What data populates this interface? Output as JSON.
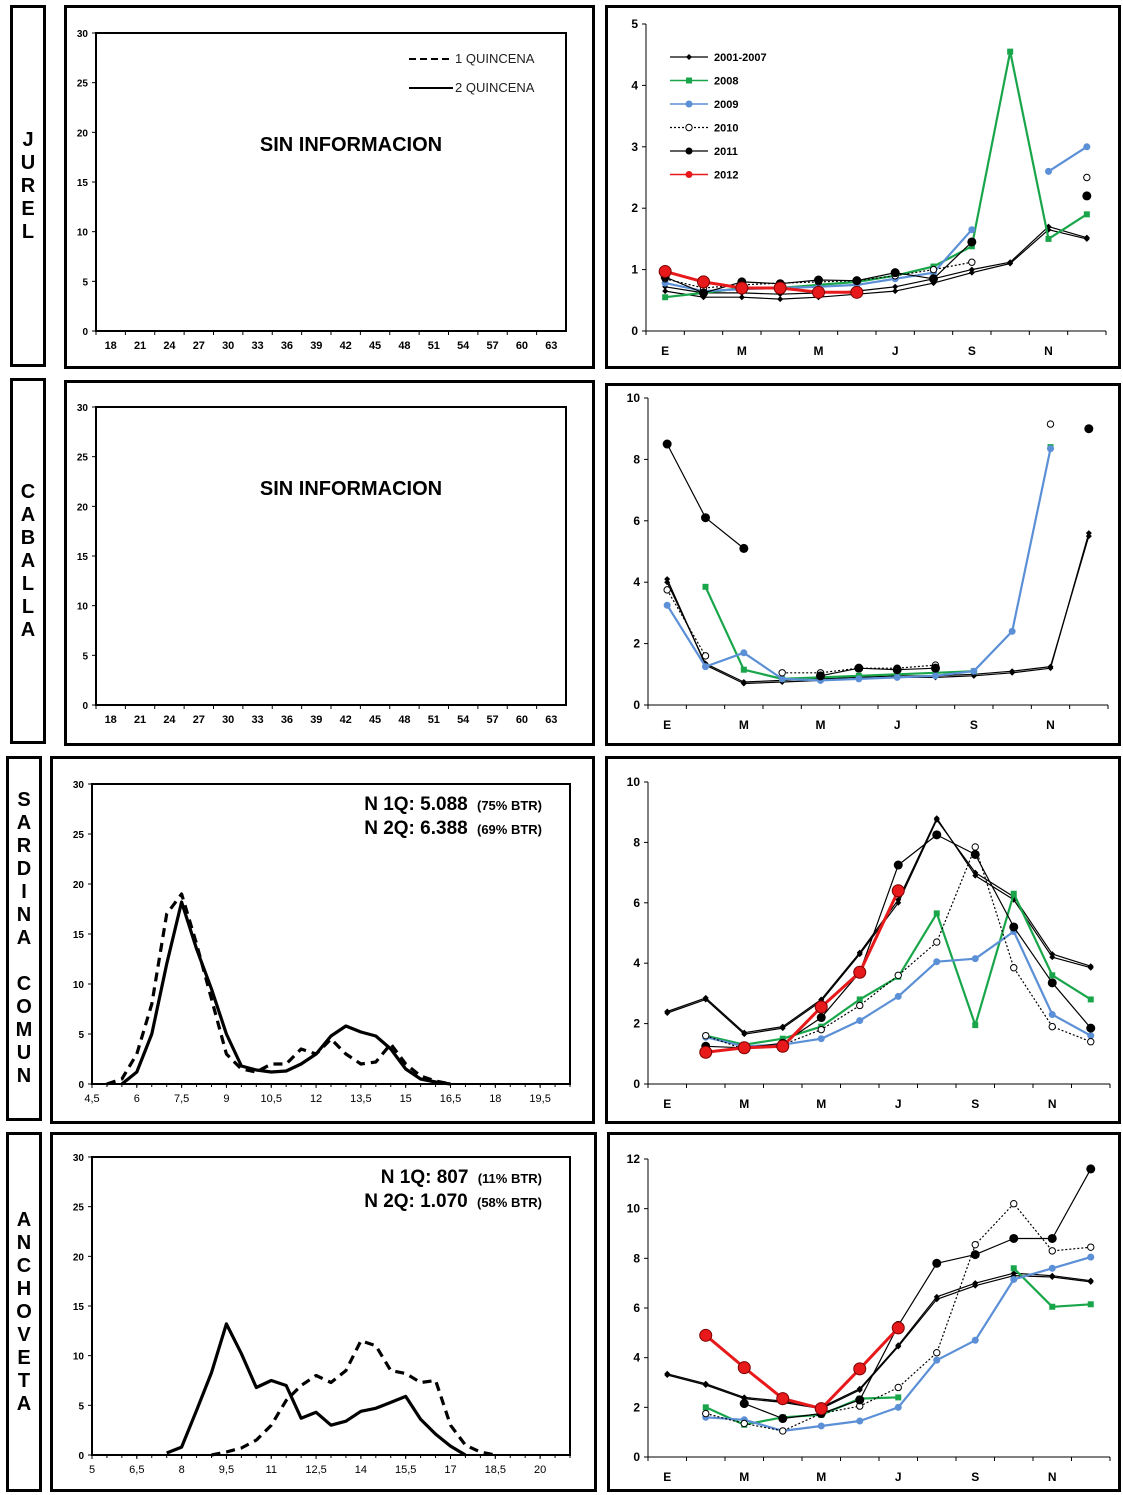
{
  "species": [
    "JUREL",
    "CABALLA",
    "SARDINA COMUN",
    "ANCHOVETA"
  ],
  "colors": {
    "2001-2007": "#000000",
    "2008": "#19a64a",
    "2009": "#5b8fd6",
    "2010": "#000000",
    "2011": "#000000",
    "2012": "#e8191b"
  },
  "chart_data": [
    {
      "id": "jurel-length",
      "type": "line",
      "message": "SIN INFORMACION",
      "legend": [
        {
          "name": "1 QUINCENA",
          "style": "dashed"
        },
        {
          "name": "2 QUINCENA",
          "style": "solid"
        }
      ],
      "xticks": [
        "18",
        "21",
        "24",
        "27",
        "30",
        "33",
        "36",
        "39",
        "42",
        "45",
        "48",
        "51",
        "54",
        "57",
        "60",
        "63"
      ],
      "ylim": [
        0,
        30
      ],
      "yticks": [
        "0",
        "5",
        "10",
        "15",
        "20",
        "25",
        "30"
      ],
      "series": []
    },
    {
      "id": "jurel-monthly",
      "type": "line",
      "xticks": [
        "E",
        "M",
        "M",
        "J",
        "S",
        "N"
      ],
      "ylim": [
        0,
        5
      ],
      "yticks": [
        "0",
        "1",
        "2",
        "3",
        "4",
        "5"
      ],
      "legend": [
        "2001-2007",
        "2008",
        "2009",
        "2010",
        "2011",
        "2012"
      ],
      "series": [
        {
          "name": "2001-2007",
          "values": [
            0.65,
            0.55,
            0.55,
            0.52,
            0.55,
            0.6,
            0.65,
            0.78,
            0.95,
            1.1,
            1.65,
            1.5
          ]
        },
        {
          "name": "2001-2007",
          "values": [
            0.72,
            0.62,
            0.62,
            0.6,
            0.62,
            0.65,
            0.72,
            0.85,
            1.0,
            1.12,
            1.7,
            1.52
          ]
        },
        {
          "name": "2008",
          "values": [
            0.55,
            0.62,
            0.7,
            0.7,
            0.75,
            0.8,
            0.9,
            1.05,
            1.38,
            4.55,
            1.5,
            1.9
          ]
        },
        {
          "name": "2009",
          "values": [
            0.78,
            0.65,
            0.68,
            0.7,
            0.72,
            0.75,
            0.85,
            0.95,
            1.65,
            null,
            2.6,
            3.0
          ]
        },
        {
          "name": "2010",
          "values": [
            0.85,
            0.7,
            0.75,
            0.78,
            0.8,
            0.82,
            0.9,
            1.0,
            1.12,
            null,
            null,
            2.5
          ]
        },
        {
          "name": "2011",
          "values": [
            0.88,
            0.62,
            0.8,
            0.77,
            0.83,
            0.82,
            0.95,
            0.85,
            1.45,
            null,
            null,
            2.2
          ]
        },
        {
          "name": "2012",
          "values": [
            0.97,
            0.8,
            0.7,
            0.7,
            0.63,
            0.63,
            null,
            null,
            null,
            null,
            null,
            null
          ]
        }
      ]
    },
    {
      "id": "caballa-length",
      "type": "line",
      "message": "SIN INFORMACION",
      "xticks": [
        "18",
        "21",
        "24",
        "27",
        "30",
        "33",
        "36",
        "39",
        "42",
        "45",
        "48",
        "51",
        "54",
        "57",
        "60",
        "63"
      ],
      "ylim": [
        0,
        30
      ],
      "yticks": [
        "0",
        "5",
        "10",
        "15",
        "20",
        "25",
        "30"
      ],
      "series": []
    },
    {
      "id": "caballa-monthly",
      "type": "line",
      "xticks": [
        "E",
        "M",
        "M",
        "J",
        "S",
        "N"
      ],
      "ylim": [
        0,
        10
      ],
      "yticks": [
        "0",
        "2",
        "4",
        "6",
        "8",
        "10"
      ],
      "series": [
        {
          "name": "2001-2007",
          "values": [
            4.1,
            1.3,
            0.7,
            0.75,
            0.8,
            0.85,
            0.9,
            0.9,
            0.95,
            1.05,
            1.2,
            5.6
          ]
        },
        {
          "name": "2001-2007",
          "values": [
            4.0,
            1.35,
            0.75,
            0.8,
            0.85,
            0.9,
            0.95,
            0.95,
            1.0,
            1.1,
            1.25,
            5.5
          ]
        },
        {
          "name": "2008",
          "values": [
            null,
            3.85,
            1.15,
            0.85,
            0.9,
            0.95,
            1.0,
            1.05,
            1.1,
            null,
            8.4,
            null
          ]
        },
        {
          "name": "2009",
          "values": [
            3.25,
            1.25,
            1.7,
            0.85,
            0.8,
            0.85,
            0.9,
            0.95,
            1.1,
            2.4,
            8.35,
            null
          ]
        },
        {
          "name": "2010",
          "values": [
            3.75,
            1.6,
            null,
            1.05,
            1.05,
            1.2,
            1.2,
            1.3,
            null,
            null,
            9.15,
            null
          ]
        },
        {
          "name": "2011",
          "values": [
            8.5,
            6.1,
            5.1,
            null,
            0.95,
            1.2,
            1.15,
            1.2,
            null,
            null,
            null,
            9.0
          ]
        }
      ]
    },
    {
      "id": "sardina-length",
      "type": "line",
      "annotations": [
        {
          "label": "N 1Q:",
          "value": "5.088",
          "btr": "(75% BTR)"
        },
        {
          "label": "N 2Q:",
          "value": "6.388",
          "btr": "(69% BTR)"
        }
      ],
      "xticks": [
        "4,5",
        "6",
        "7,5",
        "9",
        "10,5",
        "12",
        "13,5",
        "15",
        "16,5",
        "18",
        "19,5"
      ],
      "xlim": [
        4.5,
        20.5
      ],
      "ylim": [
        0,
        30
      ],
      "yticks": [
        "0",
        "5",
        "10",
        "15",
        "20",
        "25",
        "30"
      ],
      "series": [
        {
          "name": "1 QUINCENA",
          "style": "dashed",
          "x": [
            5,
            5.5,
            6,
            6.5,
            7,
            7.5,
            8,
            8.5,
            9,
            9.5,
            10,
            10.5,
            11,
            11.5,
            12,
            12.5,
            13,
            13.5,
            14,
            14.5,
            15,
            15.5,
            16,
            16.5
          ],
          "values": [
            0,
            0.5,
            3,
            8,
            17,
            19,
            14,
            8.5,
            3,
            1.5,
            1.2,
            2,
            2,
            3.5,
            3,
            4.5,
            3,
            2,
            2.2,
            4,
            2,
            0.8,
            0.3,
            0
          ]
        },
        {
          "name": "2 QUINCENA",
          "style": "solid",
          "x": [
            5.5,
            6,
            6.5,
            7,
            7.5,
            8,
            8.5,
            9,
            9.5,
            10,
            10.5,
            11,
            11.5,
            12,
            12.5,
            13,
            13.5,
            14,
            14.5,
            15,
            15.5,
            16,
            16.5
          ],
          "values": [
            0,
            1.2,
            5,
            12,
            18.2,
            13.5,
            9.5,
            5,
            1.8,
            1.4,
            1.2,
            1.3,
            2,
            3,
            4.8,
            5.8,
            5.2,
            4.8,
            3.5,
            1.5,
            0.5,
            0.2,
            0
          ]
        }
      ]
    },
    {
      "id": "sardina-monthly",
      "type": "line",
      "xticks": [
        "E",
        "M",
        "M",
        "J",
        "S",
        "N"
      ],
      "ylim": [
        0,
        10
      ],
      "yticks": [
        "0",
        "2",
        "4",
        "6",
        "8",
        "10"
      ],
      "series": [
        {
          "name": "2001-2007",
          "values": [
            2.35,
            2.8,
            1.65,
            1.85,
            2.75,
            4.3,
            6.0,
            8.75,
            7.0,
            6.2,
            4.3,
            3.9
          ]
        },
        {
          "name": "2001-2007",
          "values": [
            2.4,
            2.85,
            1.7,
            1.9,
            2.8,
            4.35,
            6.1,
            8.8,
            6.9,
            6.1,
            4.2,
            3.85
          ]
        },
        {
          "name": "2008",
          "values": [
            null,
            1.6,
            1.3,
            1.5,
            1.9,
            2.8,
            3.55,
            5.65,
            1.95,
            6.3,
            3.6,
            2.8
          ]
        },
        {
          "name": "2009",
          "values": [
            null,
            1.55,
            1.25,
            1.3,
            1.5,
            2.1,
            2.9,
            4.05,
            4.15,
            5.05,
            2.3,
            1.6
          ]
        },
        {
          "name": "2010",
          "values": [
            null,
            1.6,
            1.15,
            1.3,
            1.8,
            2.6,
            3.6,
            4.7,
            7.85,
            3.85,
            1.9,
            1.4
          ]
        },
        {
          "name": "2011",
          "values": [
            null,
            1.25,
            1.2,
            1.35,
            2.2,
            3.7,
            7.25,
            8.25,
            7.6,
            5.2,
            3.35,
            1.85
          ]
        },
        {
          "name": "2012",
          "values": [
            null,
            1.05,
            1.2,
            1.25,
            2.55,
            3.7,
            6.4,
            null,
            null,
            null,
            null,
            null
          ]
        }
      ]
    },
    {
      "id": "anchoveta-length",
      "type": "line",
      "annotations": [
        {
          "label": "N 1Q:",
          "value": "807",
          "btr": "(11% BTR)"
        },
        {
          "label": "N 2Q:",
          "value": "1.070",
          "btr": "(58% BTR)"
        }
      ],
      "xticks": [
        "5",
        "6,5",
        "8",
        "9,5",
        "11",
        "12,5",
        "14",
        "15,5",
        "17",
        "18,5",
        "20"
      ],
      "xlim": [
        5,
        21
      ],
      "ylim": [
        0,
        30
      ],
      "yticks": [
        "0",
        "5",
        "10",
        "15",
        "20",
        "25",
        "30"
      ],
      "series": [
        {
          "name": "1 QUINCENA",
          "style": "dashed",
          "x": [
            9,
            9.5,
            10,
            10.5,
            11,
            11.5,
            12,
            12.5,
            13,
            13.5,
            14,
            14.5,
            15,
            15.5,
            16,
            16.5,
            17,
            17.5,
            18,
            18.5
          ],
          "values": [
            0,
            0.3,
            0.7,
            1.5,
            3,
            5.5,
            7,
            8,
            7.3,
            8.5,
            11.5,
            11,
            8.5,
            8.2,
            7.3,
            7.5,
            3,
            1,
            0.3,
            0
          ]
        },
        {
          "name": "2 QUINCENA",
          "style": "solid",
          "x": [
            7.5,
            8,
            8.5,
            9,
            9.5,
            10,
            10.5,
            11,
            11.5,
            12,
            12.5,
            13,
            13.5,
            14,
            14.5,
            15,
            15.5,
            16,
            16.5,
            17,
            17.5
          ],
          "values": [
            0.2,
            0.8,
            4.5,
            8.3,
            13.2,
            10.2,
            6.8,
            7.5,
            7,
            3.7,
            4.3,
            3,
            3.4,
            4.4,
            4.7,
            5.3,
            5.9,
            3.6,
            2.1,
            0.9,
            0
          ]
        }
      ]
    },
    {
      "id": "anchoveta-monthly",
      "type": "line",
      "xticks": [
        "E",
        "M",
        "M",
        "J",
        "S",
        "N"
      ],
      "ylim": [
        0,
        12
      ],
      "yticks": [
        "0",
        "2",
        "4",
        "6",
        "8",
        "10",
        "12"
      ],
      "series": [
        {
          "name": "2001-2007",
          "values": [
            3.3,
            2.9,
            2.35,
            2.2,
            1.95,
            2.7,
            4.45,
            6.35,
            6.9,
            7.3,
            7.25,
            7.05
          ]
        },
        {
          "name": "2001-2007",
          "values": [
            3.35,
            2.95,
            2.4,
            2.25,
            2.0,
            2.75,
            4.5,
            6.45,
            7.0,
            7.4,
            7.3,
            7.1
          ]
        },
        {
          "name": "2008",
          "values": [
            null,
            2.0,
            1.3,
            1.6,
            1.7,
            2.35,
            2.4,
            null,
            null,
            7.6,
            6.05,
            6.15
          ]
        },
        {
          "name": "2009",
          "values": [
            null,
            1.6,
            1.5,
            1.05,
            1.25,
            1.45,
            2.0,
            3.9,
            4.7,
            7.15,
            7.6,
            8.05
          ]
        },
        {
          "name": "2010",
          "values": [
            null,
            1.75,
            1.35,
            1.05,
            1.75,
            2.05,
            2.8,
            4.2,
            8.55,
            10.2,
            8.3,
            8.45
          ]
        },
        {
          "name": "2011",
          "values": [
            null,
            null,
            2.15,
            1.55,
            1.75,
            2.3,
            5.3,
            7.8,
            8.15,
            8.8,
            8.8,
            11.6
          ]
        },
        {
          "name": "2012",
          "values": [
            null,
            4.9,
            3.6,
            2.35,
            1.95,
            3.55,
            5.2,
            null,
            null,
            null,
            null,
            null
          ]
        }
      ]
    }
  ]
}
